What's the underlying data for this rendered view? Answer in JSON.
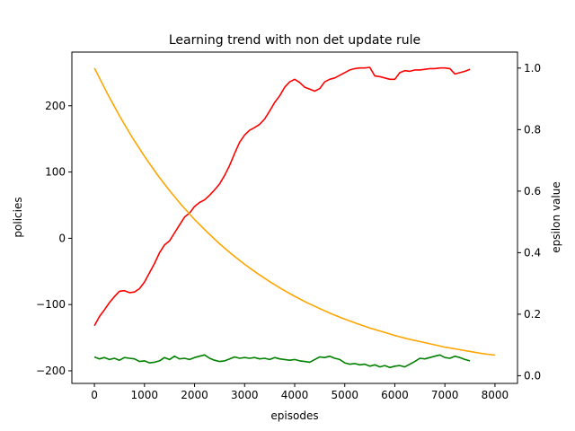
{
  "chart_data": {
    "type": "line",
    "title": "Learning trend with non det update rule",
    "xlabel": "episodes",
    "ylabel": "policies",
    "y2label": "epsilon value",
    "xlim": [
      -450,
      8450
    ],
    "ylim": [
      -219,
      281
    ],
    "y2lim": [
      -0.025,
      1.052
    ],
    "x_ticks": [
      0,
      1000,
      2000,
      3000,
      4000,
      5000,
      6000,
      7000,
      8000
    ],
    "y_ticks": [
      -200,
      -100,
      0,
      100,
      200
    ],
    "y2_ticks": [
      0.0,
      0.2,
      0.4,
      0.6,
      0.8,
      1.0
    ],
    "x_tick_labels": [
      "0",
      "1000",
      "2000",
      "3000",
      "4000",
      "5000",
      "6000",
      "7000",
      "8000"
    ],
    "y_tick_labels": [
      "−200",
      "−100",
      "0",
      "100",
      "200"
    ],
    "y2_tick_labels": [
      "0.0",
      "0.2",
      "0.4",
      "0.6",
      "0.8",
      "1.0"
    ],
    "grid": false,
    "series": [
      {
        "color": "#ff0000",
        "axis": "left",
        "x": [
          0,
          100,
          200,
          300,
          400,
          500,
          600,
          700,
          800,
          900,
          1000,
          1100,
          1200,
          1300,
          1400,
          1500,
          1600,
          1700,
          1800,
          1900,
          2000,
          2100,
          2200,
          2300,
          2400,
          2500,
          2600,
          2700,
          2800,
          2900,
          3000,
          3100,
          3200,
          3300,
          3400,
          3500,
          3600,
          3700,
          3800,
          3900,
          4000,
          4100,
          4200,
          4300,
          4400,
          4500,
          4600,
          4700,
          4800,
          4900,
          5000,
          5100,
          5200,
          5300,
          5400,
          5500,
          5600,
          5700,
          5800,
          5900,
          6000,
          6100,
          6200,
          6300,
          6400,
          6500,
          6600,
          6700,
          6800,
          6900,
          7000,
          7100,
          7200,
          7300,
          7400,
          7500
        ],
        "values": [
          -132,
          -118,
          -108,
          -97,
          -88,
          -80,
          -79,
          -82,
          -81,
          -76,
          -66,
          -52,
          -38,
          -22,
          -10,
          -4,
          8,
          20,
          32,
          38,
          48,
          54,
          58,
          65,
          73,
          82,
          95,
          110,
          128,
          145,
          156,
          163,
          167,
          172,
          180,
          192,
          205,
          215,
          228,
          236,
          240,
          235,
          228,
          225,
          222,
          226,
          236,
          240,
          242,
          246,
          250,
          254,
          256,
          257,
          257,
          258,
          245,
          244,
          242,
          240,
          240,
          250,
          253,
          252,
          254,
          254,
          255,
          256,
          256,
          257,
          257,
          256,
          248,
          250,
          252,
          255
        ]
      },
      {
        "color": "#008000",
        "axis": "left",
        "x": [
          0,
          100,
          200,
          300,
          400,
          500,
          600,
          700,
          800,
          900,
          1000,
          1100,
          1200,
          1300,
          1400,
          1500,
          1600,
          1700,
          1800,
          1900,
          2000,
          2100,
          2200,
          2300,
          2400,
          2500,
          2600,
          2700,
          2800,
          2900,
          3000,
          3100,
          3200,
          3300,
          3400,
          3500,
          3600,
          3700,
          3800,
          3900,
          4000,
          4100,
          4200,
          4300,
          4400,
          4500,
          4600,
          4700,
          4800,
          4900,
          5000,
          5100,
          5200,
          5300,
          5400,
          5500,
          5600,
          5700,
          5800,
          5900,
          6000,
          6100,
          6200,
          6300,
          6400,
          6500,
          6600,
          6700,
          6800,
          6900,
          7000,
          7100,
          7200,
          7300,
          7400,
          7500
        ],
        "values": [
          -179,
          -182,
          -180,
          -183,
          -181,
          -184,
          -180,
          -181,
          -182,
          -186,
          -185,
          -188,
          -187,
          -185,
          -180,
          -183,
          -178,
          -182,
          -181,
          -183,
          -180,
          -178,
          -176,
          -181,
          -184,
          -186,
          -185,
          -182,
          -179,
          -181,
          -180,
          -181,
          -180,
          -182,
          -181,
          -183,
          -180,
          -182,
          -183,
          -184,
          -183,
          -185,
          -186,
          -187,
          -183,
          -179,
          -180,
          -178,
          -181,
          -183,
          -188,
          -190,
          -189,
          -191,
          -190,
          -193,
          -191,
          -194,
          -192,
          -195,
          -193,
          -192,
          -194,
          -190,
          -186,
          -181,
          -182,
          -180,
          -178,
          -176,
          -180,
          -181,
          -178,
          -180,
          -183,
          -185
        ]
      },
      {
        "color": "#ffa500",
        "axis": "right",
        "x": [
          0,
          250,
          500,
          750,
          1000,
          1250,
          1500,
          1750,
          2000,
          2250,
          2500,
          2750,
          3000,
          3250,
          3500,
          3750,
          4000,
          4250,
          4500,
          4750,
          5000,
          5250,
          5500,
          5750,
          6000,
          6250,
          6500,
          6750,
          7000,
          7250,
          7500,
          7750,
          8000
        ],
        "values": [
          1.0,
          0.92,
          0.845,
          0.776,
          0.713,
          0.655,
          0.602,
          0.553,
          0.508,
          0.467,
          0.429,
          0.394,
          0.362,
          0.333,
          0.306,
          0.281,
          0.258,
          0.237,
          0.218,
          0.2,
          0.184,
          0.169,
          0.155,
          0.143,
          0.131,
          0.12,
          0.111,
          0.102,
          0.093,
          0.086,
          0.079,
          0.072,
          0.067
        ]
      }
    ]
  }
}
